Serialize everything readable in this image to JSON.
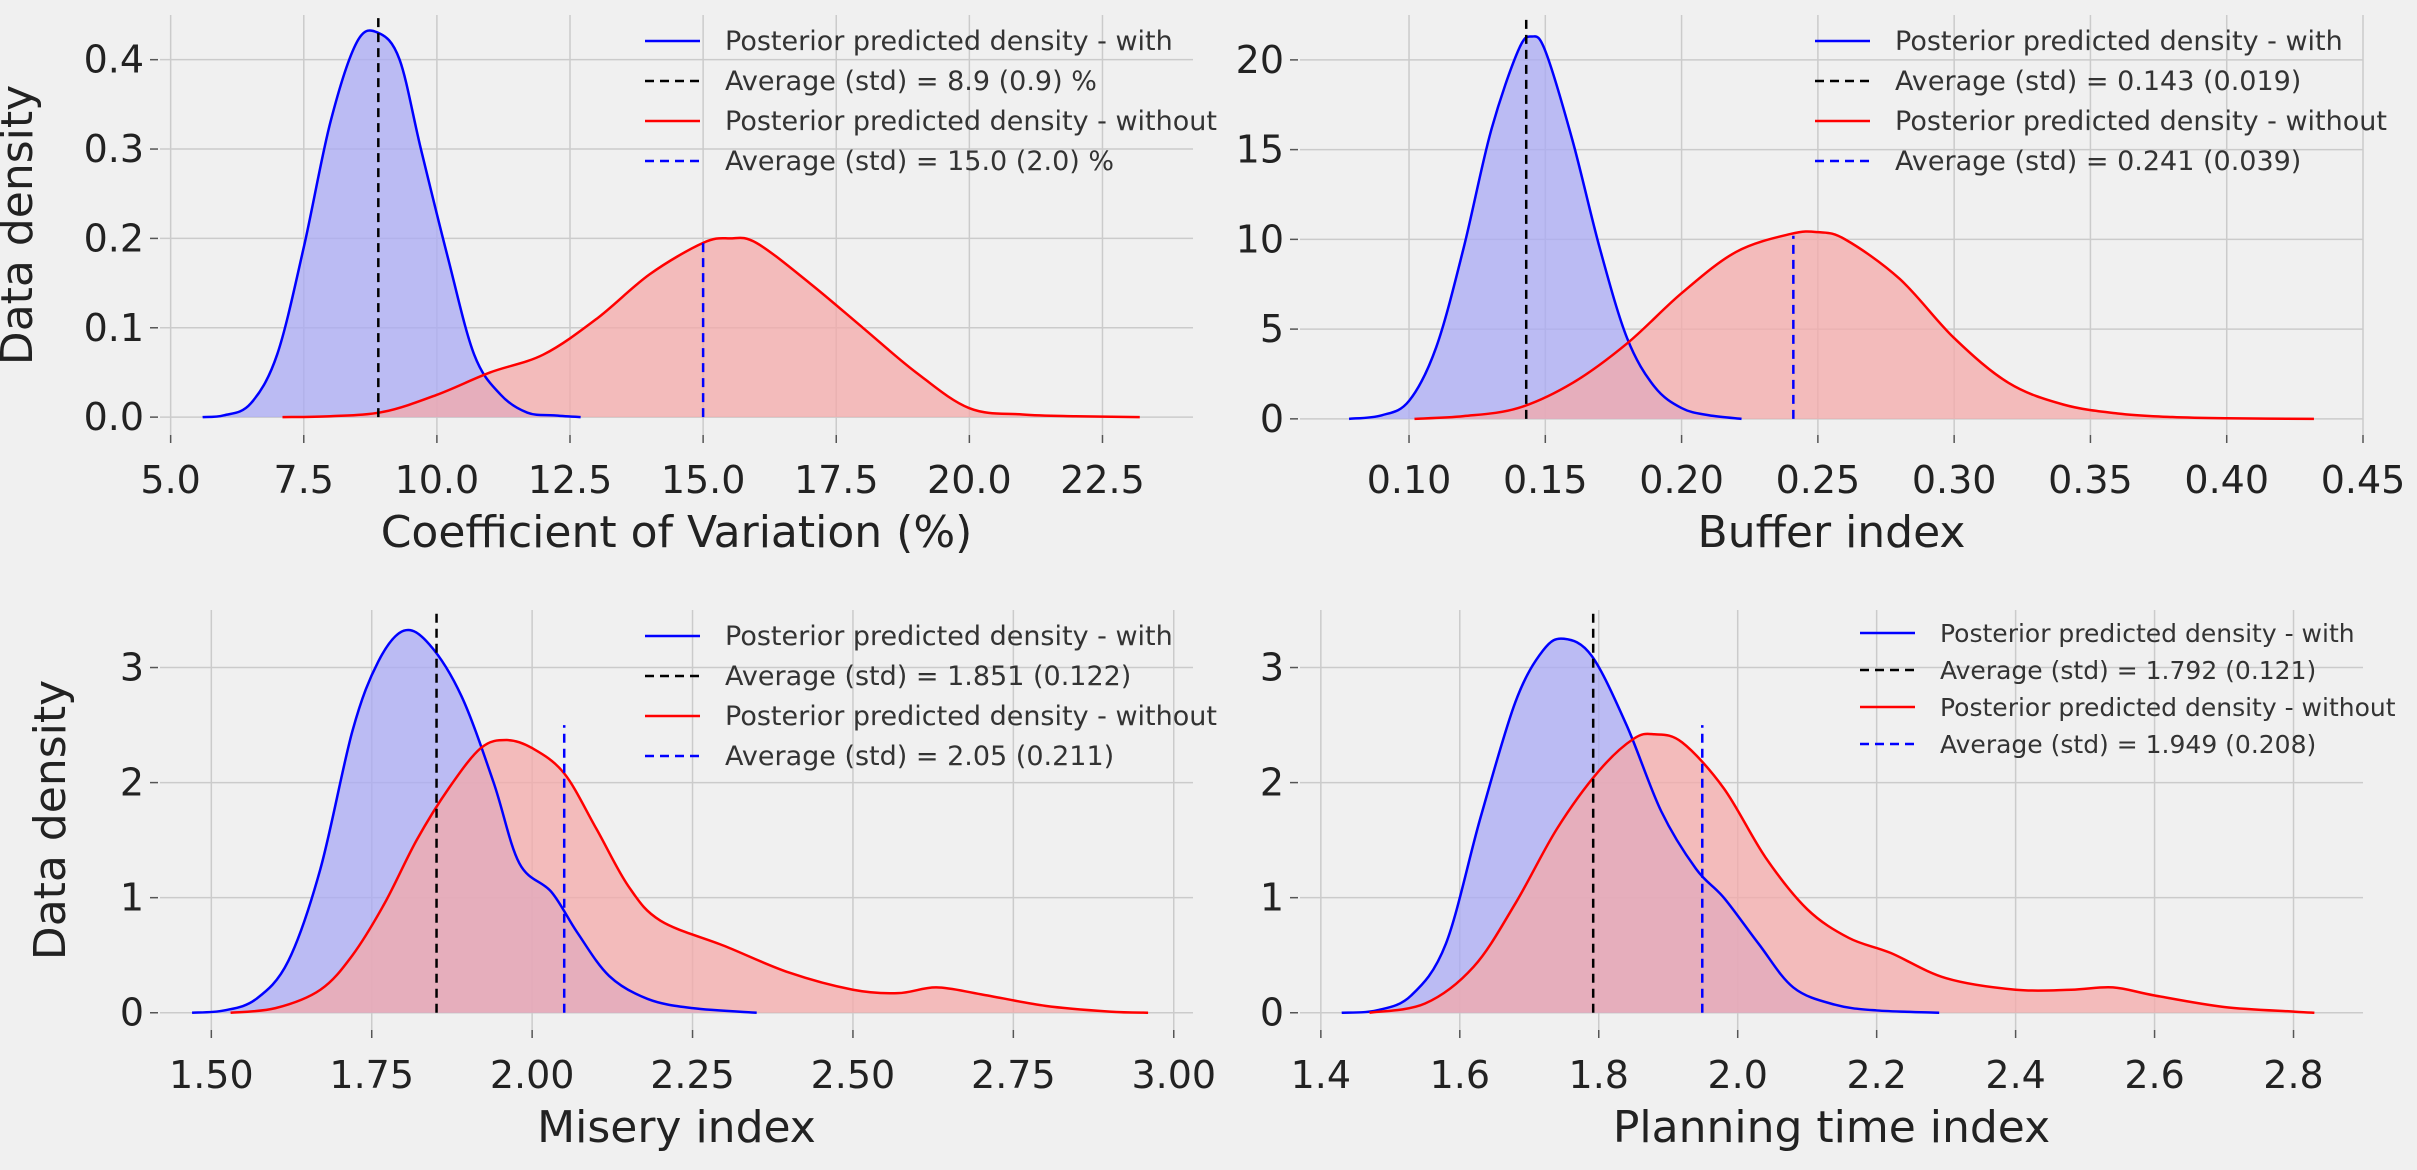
{
  "colors": {
    "with": "#0000ff",
    "without": "#ff0000",
    "with_fill": "#aaaaf4",
    "without_fill": "#f4aaaa",
    "mean_with": "#000000",
    "mean_without": "#0000ff",
    "background": "#f0f0f0",
    "grid": "#cbcbcb"
  },
  "chart_data": [
    {
      "type": "area",
      "xlabel": "Coefficient of Variation (%)",
      "ylabel": "Data density",
      "xlim": [
        4.8,
        24.2
      ],
      "ylim": [
        -0.02,
        0.45
      ],
      "xticks": [
        5.0,
        7.5,
        10.0,
        12.5,
        15.0,
        17.5,
        20.0,
        22.5
      ],
      "xtick_labels": [
        "5.0",
        "7.5",
        "10.0",
        "12.5",
        "15.0",
        "17.5",
        "20.0",
        "22.5"
      ],
      "yticks": [
        0.0,
        0.1,
        0.2,
        0.3,
        0.4
      ],
      "ytick_labels": [
        "0.0",
        "0.1",
        "0.2",
        "0.3",
        "0.4"
      ],
      "grid": true,
      "legend_position": "top-right",
      "series": [
        {
          "name": "Posterior predicted density - with",
          "kind": "density",
          "color": "#0000ff",
          "x": [
            5.6,
            6.0,
            6.5,
            7.0,
            7.5,
            8.0,
            8.5,
            8.9,
            9.3,
            9.7,
            10.2,
            10.7,
            11.2,
            11.7,
            12.2,
            12.7
          ],
          "y": [
            0.0,
            0.002,
            0.015,
            0.07,
            0.19,
            0.33,
            0.42,
            0.43,
            0.4,
            0.3,
            0.18,
            0.07,
            0.025,
            0.005,
            0.002,
            0.0
          ]
        },
        {
          "name": "Posterior predicted density - without",
          "kind": "density",
          "color": "#ff0000",
          "x": [
            7.1,
            8.0,
            9.0,
            10.0,
            11.0,
            12.0,
            13.0,
            14.0,
            15.0,
            15.5,
            16.0,
            17.0,
            18.0,
            19.0,
            20.0,
            21.0,
            22.0,
            23.2
          ],
          "y": [
            0.0,
            0.001,
            0.006,
            0.025,
            0.05,
            0.07,
            0.11,
            0.16,
            0.195,
            0.2,
            0.195,
            0.15,
            0.1,
            0.05,
            0.01,
            0.003,
            0.001,
            0.0
          ]
        }
      ],
      "mean_lines": [
        {
          "name": "Average (std) = 8.9 (0.9) %",
          "x": 8.9,
          "y_top": 0.45,
          "color": "#000000"
        },
        {
          "name": "Average (std) = 15.0 (2.0) %",
          "x": 15.0,
          "y_top": 0.2,
          "color": "#0000ff"
        }
      ]
    },
    {
      "type": "area",
      "xlabel": "Buffer index",
      "ylabel": "",
      "xlim": [
        0.06,
        0.45
      ],
      "ylim": [
        -0.9,
        22.5
      ],
      "xticks": [
        0.1,
        0.15,
        0.2,
        0.25,
        0.3,
        0.35,
        0.4,
        0.45
      ],
      "xtick_labels": [
        "0.10",
        "0.15",
        "0.20",
        "0.25",
        "0.30",
        "0.35",
        "0.40",
        "0.45"
      ],
      "yticks": [
        0,
        5,
        10,
        15,
        20
      ],
      "ytick_labels": [
        "0",
        "5",
        "10",
        "15",
        "20"
      ],
      "grid": true,
      "legend_position": "top-right",
      "series": [
        {
          "name": "Posterior predicted density - with",
          "kind": "density",
          "color": "#0000ff",
          "x": [
            0.078,
            0.09,
            0.1,
            0.11,
            0.12,
            0.13,
            0.14,
            0.145,
            0.15,
            0.16,
            0.17,
            0.18,
            0.19,
            0.2,
            0.21,
            0.222
          ],
          "y": [
            0.0,
            0.2,
            1.0,
            4.0,
            9.5,
            16.0,
            20.5,
            21.3,
            20.5,
            15.5,
            9.5,
            4.5,
            1.8,
            0.6,
            0.2,
            0.0
          ]
        },
        {
          "name": "Posterior predicted density - without",
          "kind": "density",
          "color": "#ff0000",
          "x": [
            0.102,
            0.12,
            0.14,
            0.16,
            0.18,
            0.2,
            0.22,
            0.24,
            0.25,
            0.26,
            0.28,
            0.3,
            0.32,
            0.34,
            0.36,
            0.38,
            0.4,
            0.432
          ],
          "y": [
            0.0,
            0.15,
            0.6,
            2.0,
            4.2,
            7.0,
            9.3,
            10.3,
            10.4,
            10.0,
            7.8,
            4.5,
            2.0,
            0.8,
            0.3,
            0.1,
            0.03,
            0.0
          ]
        }
      ],
      "mean_lines": [
        {
          "name": "Average (std) = 0.143 (0.019)",
          "x": 0.143,
          "y_top": 22.5,
          "color": "#000000"
        },
        {
          "name": "Average (std) = 0.241 (0.039)",
          "x": 0.241,
          "y_top": 10.2,
          "color": "#0000ff"
        }
      ]
    },
    {
      "type": "area",
      "xlabel": "Misery index",
      "ylabel": "Data density",
      "xlim": [
        1.42,
        3.03
      ],
      "ylim": [
        -0.15,
        3.5
      ],
      "xticks": [
        1.5,
        1.75,
        2.0,
        2.25,
        2.5,
        2.75,
        3.0
      ],
      "xtick_labels": [
        "1.50",
        "1.75",
        "2.00",
        "2.25",
        "2.50",
        "2.75",
        "3.00"
      ],
      "yticks": [
        0,
        1,
        2,
        3
      ],
      "ytick_labels": [
        "0",
        "1",
        "2",
        "3"
      ],
      "grid": true,
      "legend_position": "top-right",
      "series": [
        {
          "name": "Posterior predicted density - with",
          "kind": "density",
          "color": "#0000ff",
          "x": [
            1.47,
            1.52,
            1.57,
            1.62,
            1.67,
            1.72,
            1.76,
            1.8,
            1.84,
            1.89,
            1.94,
            1.98,
            2.03,
            2.07,
            2.12,
            2.18,
            2.25,
            2.35
          ],
          "y": [
            0.0,
            0.02,
            0.12,
            0.45,
            1.25,
            2.45,
            3.05,
            3.32,
            3.2,
            2.75,
            2.0,
            1.3,
            1.05,
            0.7,
            0.32,
            0.12,
            0.04,
            0.0
          ]
        },
        {
          "name": "Posterior predicted density - without",
          "kind": "density",
          "color": "#ff0000",
          "x": [
            1.53,
            1.6,
            1.67,
            1.72,
            1.77,
            1.82,
            1.87,
            1.92,
            1.96,
            2.0,
            2.05,
            2.1,
            2.15,
            2.2,
            2.3,
            2.4,
            2.5,
            2.57,
            2.63,
            2.7,
            2.8,
            2.9,
            2.96
          ],
          "y": [
            0.0,
            0.04,
            0.2,
            0.5,
            0.95,
            1.5,
            1.95,
            2.3,
            2.37,
            2.3,
            2.08,
            1.6,
            1.1,
            0.8,
            0.58,
            0.35,
            0.2,
            0.17,
            0.22,
            0.16,
            0.06,
            0.01,
            0.0
          ]
        }
      ],
      "mean_lines": [
        {
          "name": "Average (std) = 1.851 (0.122)",
          "x": 1.851,
          "y_top": 3.5,
          "color": "#000000"
        },
        {
          "name": "Average (std) = 2.05 (0.211)",
          "x": 2.05,
          "y_top": 2.5,
          "color": "#0000ff"
        }
      ]
    },
    {
      "type": "area",
      "xlabel": "Planning time index",
      "ylabel": "",
      "xlim": [
        1.37,
        2.9
      ],
      "ylim": [
        -0.15,
        3.5
      ],
      "xticks": [
        1.4,
        1.6,
        1.8,
        2.0,
        2.2,
        2.4,
        2.6,
        2.8
      ],
      "xtick_labels": [
        "1.4",
        "1.6",
        "1.8",
        "2.0",
        "2.2",
        "2.4",
        "2.6",
        "2.8"
      ],
      "yticks": [
        0,
        1,
        2,
        3
      ],
      "ytick_labels": [
        "0",
        "1",
        "2",
        "3"
      ],
      "grid": true,
      "legend_position": "top-right",
      "series": [
        {
          "name": "Posterior predicted density - with",
          "kind": "density",
          "color": "#0000ff",
          "x": [
            1.43,
            1.48,
            1.53,
            1.58,
            1.63,
            1.68,
            1.72,
            1.75,
            1.79,
            1.84,
            1.89,
            1.94,
            1.98,
            2.03,
            2.08,
            2.14,
            2.2,
            2.29
          ],
          "y": [
            0.0,
            0.02,
            0.15,
            0.6,
            1.7,
            2.7,
            3.15,
            3.25,
            3.1,
            2.5,
            1.75,
            1.25,
            1.0,
            0.6,
            0.22,
            0.07,
            0.02,
            0.0
          ]
        },
        {
          "name": "Posterior predicted density - without",
          "kind": "density",
          "color": "#ff0000",
          "x": [
            1.47,
            1.55,
            1.62,
            1.68,
            1.74,
            1.8,
            1.85,
            1.88,
            1.92,
            1.98,
            2.04,
            2.1,
            2.16,
            2.22,
            2.3,
            2.4,
            2.48,
            2.54,
            2.6,
            2.7,
            2.8,
            2.83
          ],
          "y": [
            0.0,
            0.08,
            0.4,
            0.95,
            1.6,
            2.1,
            2.38,
            2.42,
            2.35,
            1.95,
            1.35,
            0.9,
            0.65,
            0.52,
            0.3,
            0.2,
            0.2,
            0.22,
            0.15,
            0.05,
            0.01,
            0.0
          ]
        }
      ],
      "mean_lines": [
        {
          "name": "Average (std) = 1.792 (0.121)",
          "x": 1.792,
          "y_top": 3.5,
          "color": "#000000"
        },
        {
          "name": "Average (std) = 1.949 (0.208)",
          "x": 1.949,
          "y_top": 2.5,
          "color": "#0000ff"
        }
      ]
    }
  ]
}
